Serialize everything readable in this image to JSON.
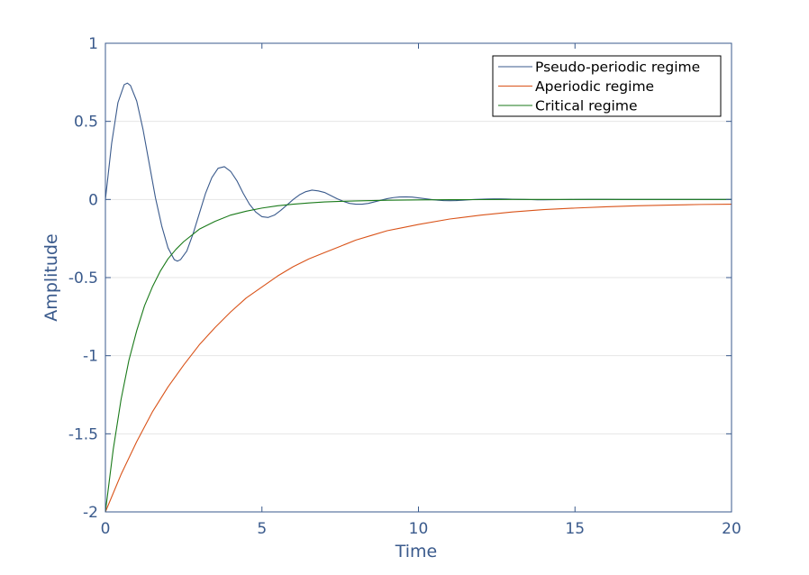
{
  "chart_data": {
    "type": "line",
    "xlabel": "Time",
    "ylabel": "Amplitude",
    "xlim": [
      0,
      20
    ],
    "ylim": [
      -2,
      1
    ],
    "x_ticks": [
      0,
      5,
      10,
      15,
      20
    ],
    "x_tick_labels": [
      "0",
      "5",
      "10",
      "15",
      "20"
    ],
    "y_ticks": [
      1,
      0.5,
      0,
      -0.5,
      -1,
      -1.5,
      -2
    ],
    "y_tick_labels": [
      "1",
      "0.5",
      "0",
      "-0.5",
      "-1",
      "-1.5",
      "-2"
    ],
    "grid": "horizontal",
    "legend_position": "top-right",
    "series": [
      {
        "name": "Pseudo-periodic regime",
        "color": "#3a5a8c",
        "x": [
          0,
          0.2,
          0.4,
          0.6,
          0.7,
          0.8,
          1.0,
          1.2,
          1.4,
          1.6,
          1.8,
          2.0,
          2.2,
          2.3,
          2.4,
          2.6,
          2.8,
          3.0,
          3.2,
          3.4,
          3.6,
          3.8,
          4.0,
          4.2,
          4.4,
          4.6,
          4.8,
          5.0,
          5.2,
          5.4,
          5.6,
          5.8,
          6.0,
          6.2,
          6.4,
          6.6,
          6.8,
          7.0,
          7.2,
          7.4,
          7.6,
          7.8,
          8.0,
          8.2,
          8.4,
          8.6,
          8.8,
          9.0,
          9.2,
          9.4,
          9.6,
          9.8,
          10.0,
          10.2,
          10.4,
          10.6,
          10.8,
          11.0,
          11.2,
          11.4,
          11.6,
          11.8,
          12.0,
          12.2,
          12.4,
          12.6,
          12.8,
          13.0,
          13.2,
          13.4,
          13.6,
          13.8,
          14.0,
          14.5,
          15.0,
          15.5,
          16.0,
          16.5,
          17.0,
          17.5,
          18.0,
          18.5,
          19.0,
          19.5,
          20.0
        ],
        "y": [
          0,
          0.36,
          0.62,
          0.735,
          0.745,
          0.73,
          0.63,
          0.45,
          0.23,
          0.01,
          -0.17,
          -0.31,
          -0.385,
          -0.395,
          -0.385,
          -0.33,
          -0.22,
          -0.09,
          0.04,
          0.14,
          0.2,
          0.21,
          0.18,
          0.12,
          0.04,
          -0.03,
          -0.08,
          -0.11,
          -0.115,
          -0.1,
          -0.07,
          -0.035,
          0.0,
          0.03,
          0.05,
          0.06,
          0.055,
          0.045,
          0.025,
          0.005,
          -0.012,
          -0.025,
          -0.03,
          -0.03,
          -0.025,
          -0.015,
          -0.005,
          0.005,
          0.012,
          0.016,
          0.017,
          0.015,
          0.01,
          0.005,
          0.0,
          -0.004,
          -0.007,
          -0.008,
          -0.007,
          -0.005,
          -0.002,
          0.0,
          0.002,
          0.003,
          0.004,
          0.004,
          0.003,
          0.002,
          0.001,
          0.0,
          -0.001,
          -0.002,
          -0.002,
          -0.001,
          0.0,
          0.001,
          0.001,
          0.0,
          0.0,
          0.0,
          0.0,
          0.0,
          0.0,
          0.0,
          0.0
        ]
      },
      {
        "name": "Aperiodic regime",
        "color": "#d95319",
        "x": [
          0,
          0.5,
          1,
          1.5,
          2,
          2.5,
          3,
          3.5,
          4,
          4.5,
          5,
          5.5,
          6,
          6.5,
          7,
          7.5,
          8,
          8.5,
          9,
          9.5,
          10,
          11,
          12,
          13,
          14,
          15,
          16,
          17,
          18,
          19,
          20
        ],
        "y": [
          -2,
          -1.76,
          -1.55,
          -1.36,
          -1.2,
          -1.06,
          -0.93,
          -0.82,
          -0.72,
          -0.63,
          -0.56,
          -0.49,
          -0.43,
          -0.38,
          -0.34,
          -0.3,
          -0.26,
          -0.23,
          -0.2,
          -0.18,
          -0.16,
          -0.125,
          -0.1,
          -0.08,
          -0.065,
          -0.055,
          -0.047,
          -0.04,
          -0.036,
          -0.032,
          -0.03
        ]
      },
      {
        "name": "Critical regime",
        "color": "#1a7a1a",
        "x": [
          0,
          0.25,
          0.5,
          0.75,
          1,
          1.25,
          1.5,
          1.75,
          2,
          2.25,
          2.5,
          3,
          3.5,
          4,
          4.5,
          5,
          5.5,
          6,
          6.5,
          7,
          7.5,
          8,
          9,
          10,
          11,
          12,
          13,
          14,
          15,
          16,
          17,
          18,
          19,
          20
        ],
        "y": [
          -2,
          -1.6,
          -1.28,
          -1.03,
          -0.84,
          -0.68,
          -0.56,
          -0.46,
          -0.38,
          -0.32,
          -0.27,
          -0.19,
          -0.14,
          -0.1,
          -0.075,
          -0.055,
          -0.04,
          -0.03,
          -0.022,
          -0.016,
          -0.012,
          -0.009,
          -0.005,
          -0.003,
          -0.0015,
          -0.001,
          0.0,
          0.0,
          0.0,
          0.0,
          0.0,
          0.0,
          0.0,
          0.0
        ]
      }
    ]
  }
}
